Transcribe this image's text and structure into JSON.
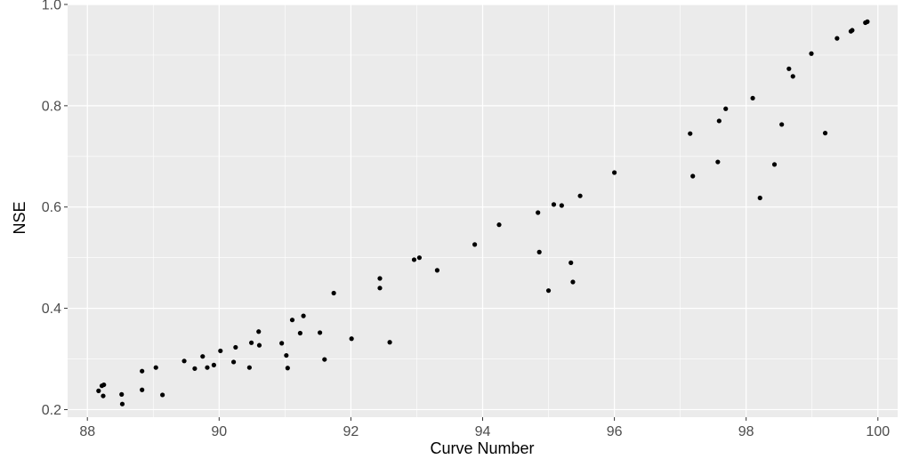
{
  "chart_data": {
    "type": "scatter",
    "title": "",
    "xlabel": "Curve Number",
    "ylabel": "NSE",
    "xlim": [
      87.7,
      100.3
    ],
    "ylim": [
      0.185,
      1.0
    ],
    "grid": true,
    "x_ticks": [
      88,
      90,
      92,
      94,
      96,
      98,
      100
    ],
    "x_tick_labels": [
      "88",
      "90",
      "92",
      "94",
      "96",
      "98",
      "100"
    ],
    "y_ticks": [
      0.2,
      0.4,
      0.6,
      0.8,
      1.0
    ],
    "y_tick_labels": [
      "0.2",
      "0.4",
      "0.6",
      "0.8",
      "1.0"
    ],
    "colors": {
      "panel": "#ebebeb",
      "grid": "#ffffff",
      "point": "#000000",
      "tick": "#333333"
    },
    "points": [
      [
        88.17,
        0.237
      ],
      [
        88.22,
        0.247
      ],
      [
        88.25,
        0.249
      ],
      [
        88.24,
        0.227
      ],
      [
        88.52,
        0.23
      ],
      [
        88.53,
        0.211
      ],
      [
        88.83,
        0.276
      ],
      [
        88.83,
        0.239
      ],
      [
        89.04,
        0.283
      ],
      [
        89.14,
        0.229
      ],
      [
        89.47,
        0.296
      ],
      [
        89.63,
        0.281
      ],
      [
        89.75,
        0.305
      ],
      [
        89.82,
        0.283
      ],
      [
        89.92,
        0.288
      ],
      [
        90.02,
        0.316
      ],
      [
        90.22,
        0.294
      ],
      [
        90.25,
        0.323
      ],
      [
        90.46,
        0.283
      ],
      [
        90.49,
        0.332
      ],
      [
        90.6,
        0.354
      ],
      [
        90.61,
        0.327
      ],
      [
        90.95,
        0.331
      ],
      [
        91.02,
        0.307
      ],
      [
        91.04,
        0.282
      ],
      [
        91.11,
        0.377
      ],
      [
        91.23,
        0.351
      ],
      [
        91.28,
        0.385
      ],
      [
        91.53,
        0.352
      ],
      [
        91.6,
        0.299
      ],
      [
        91.74,
        0.43
      ],
      [
        92.01,
        0.34
      ],
      [
        92.44,
        0.459
      ],
      [
        92.44,
        0.44
      ],
      [
        92.59,
        0.333
      ],
      [
        92.96,
        0.496
      ],
      [
        93.04,
        0.5
      ],
      [
        93.31,
        0.475
      ],
      [
        93.88,
        0.526
      ],
      [
        94.25,
        0.565
      ],
      [
        94.84,
        0.589
      ],
      [
        94.86,
        0.511
      ],
      [
        95.0,
        0.435
      ],
      [
        95.08,
        0.605
      ],
      [
        95.2,
        0.603
      ],
      [
        95.34,
        0.49
      ],
      [
        95.37,
        0.452
      ],
      [
        95.48,
        0.622
      ],
      [
        96.0,
        0.668
      ],
      [
        97.15,
        0.745
      ],
      [
        97.19,
        0.661
      ],
      [
        97.57,
        0.689
      ],
      [
        97.59,
        0.77
      ],
      [
        97.69,
        0.794
      ],
      [
        98.1,
        0.815
      ],
      [
        98.21,
        0.618
      ],
      [
        98.43,
        0.684
      ],
      [
        98.54,
        0.763
      ],
      [
        98.65,
        0.873
      ],
      [
        98.71,
        0.858
      ],
      [
        98.99,
        0.903
      ],
      [
        99.2,
        0.746
      ],
      [
        99.38,
        0.933
      ],
      [
        99.59,
        0.947
      ],
      [
        99.61,
        0.949
      ],
      [
        99.81,
        0.964
      ],
      [
        99.84,
        0.966
      ]
    ]
  }
}
